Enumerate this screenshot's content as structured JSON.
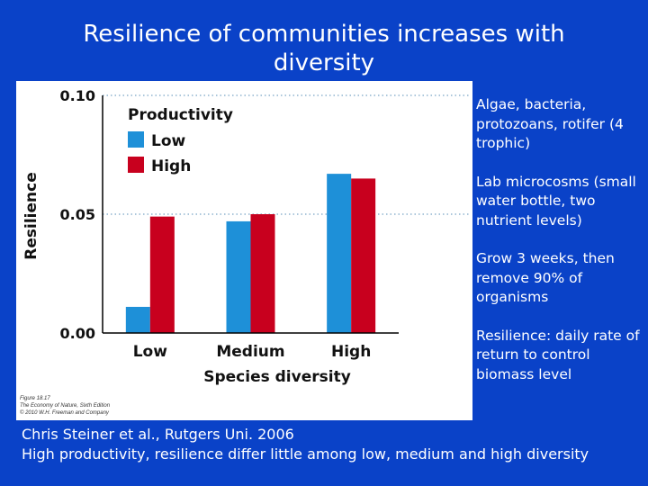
{
  "slide": {
    "title": "Resilience of communities increases with diversity",
    "notes": [
      "Algae, bacteria, protozoans, rotifer (4 trophic)",
      "Lab microcosms (small water bottle, two nutrient levels)",
      "Grow 3 weeks, then remove 90% of organisms",
      "Resilience: daily rate of return to control biomass level"
    ],
    "footer": {
      "line1": "Chris Steiner et al., Rutgers Uni. 2006",
      "line2": "High productivity, resilience differ little among low, medium and high diversity"
    },
    "figure_credit": [
      "Figure 18.17",
      "The Economy of Nature, Sixth Edition",
      "© 2010 W.H. Freeman and Company"
    ]
  },
  "chart_data": {
    "type": "bar",
    "title": "",
    "xlabel": "Species diversity",
    "ylabel": "Resilience",
    "categories": [
      "Low",
      "Medium",
      "High"
    ],
    "ylim": [
      0,
      0.1
    ],
    "yticks": [
      "0.00",
      "0.05",
      "0.10"
    ],
    "legend_title": "Productivity",
    "legend_position": "top-left",
    "grid": true,
    "series": [
      {
        "name": "Low",
        "color": "#1e90d8",
        "values": [
          0.011,
          0.047,
          0.067
        ]
      },
      {
        "name": "High",
        "color": "#c8001e",
        "values": [
          0.049,
          0.05,
          0.065
        ]
      }
    ]
  }
}
